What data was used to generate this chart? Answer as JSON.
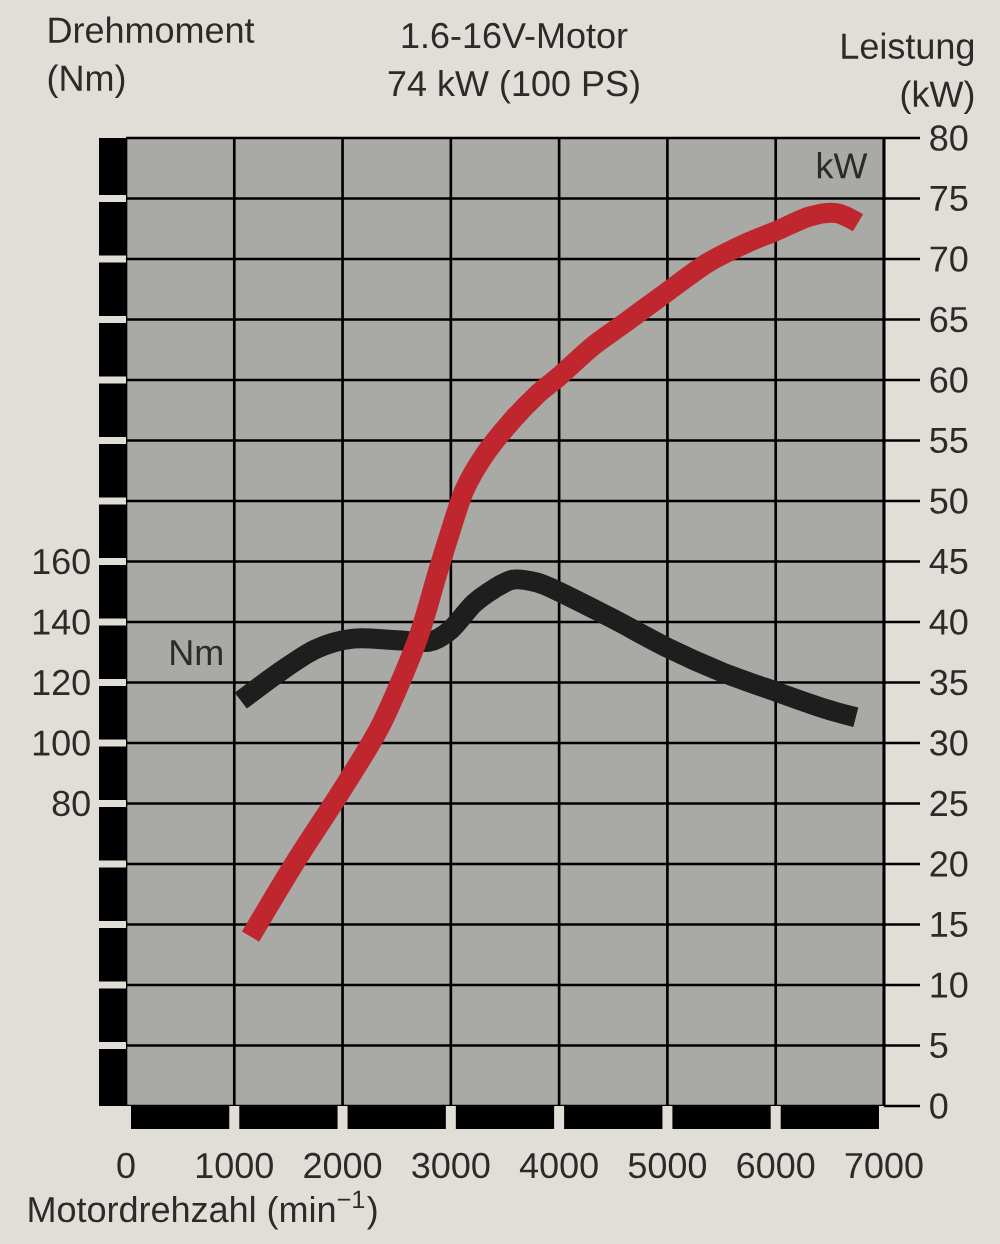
{
  "chart_data": {
    "type": "line",
    "title": "1.6-16V-Motor",
    "subtitle": "74 kW (100 PS)",
    "xlabel": "Motordrehzahl (min$^{−1}$)",
    "ylabel": "Drehmoment (Nm)",
    "y2label": "Leistung (kW)",
    "series": [
      {
        "name": "Nm",
        "color": "#1e1e1e",
        "x": [
          1060,
          1400,
          1750,
          2100,
          2500,
          2800,
          3000,
          3210,
          3400,
          3575,
          3800,
          4000,
          4500,
          5000,
          5500,
          6000,
          6440,
          6740
        ],
        "values": [
          114,
          123,
          131,
          134.5,
          134,
          133.5,
          137.5,
          146,
          151,
          154,
          153,
          150,
          141,
          131.5,
          123.5,
          117,
          111.5,
          108.5
        ]
      },
      {
        "name": "kW",
        "color": "#c0262d",
        "axis": "y2",
        "x": [
          1150,
          1580,
          2000,
          2360,
          2690,
          2875,
          3000,
          3125,
          3310,
          3560,
          3810,
          4000,
          4310,
          4620,
          5000,
          5375,
          5750,
          6000,
          6310,
          6560,
          6760
        ],
        "values": [
          14,
          20.4,
          26.2,
          31.6,
          38.5,
          44,
          47.6,
          50.9,
          53.8,
          56.6,
          58.9,
          60.3,
          62.8,
          64.8,
          67.3,
          69.7,
          71.4,
          72.3,
          73.5,
          73.8,
          73
        ]
      }
    ],
    "xlim": [
      0,
      7000
    ],
    "xticks": [
      0,
      1000,
      2000,
      3000,
      4000,
      5000,
      6000,
      7000
    ],
    "ylim": [
      -20,
      300
    ],
    "yticks": [
      {
        "value": 0,
        "label": null
      },
      {
        "value": 20,
        "label": null
      },
      {
        "value": 40,
        "label": null
      },
      {
        "value": 60,
        "label": null
      },
      80,
      100,
      120,
      140,
      160,
      {
        "value": 180,
        "label": null
      },
      {
        "value": 200,
        "label": null
      },
      {
        "value": 220,
        "label": null
      },
      {
        "value": 240,
        "label": null
      },
      {
        "value": 260,
        "label": null
      },
      {
        "value": 280,
        "label": null
      }
    ],
    "y2lim": [
      0,
      80
    ],
    "y2ticks": [
      0,
      5,
      10,
      15,
      20,
      25,
      30,
      35,
      40,
      45,
      50,
      55,
      60,
      65,
      70,
      75,
      80
    ],
    "grid": true,
    "legend": false,
    "marker": "none",
    "line_style": "solid"
  }
}
